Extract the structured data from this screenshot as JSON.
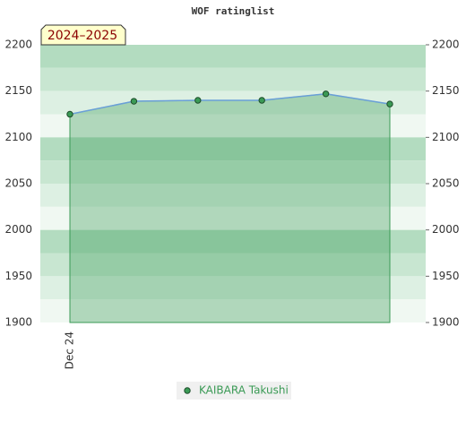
{
  "chart_data": {
    "type": "area",
    "title": "WOF ratinglist",
    "badge": "2024–2025",
    "categories": [
      "Dec 24",
      null,
      null,
      null,
      null,
      null
    ],
    "series": [
      {
        "name": "KAIBARA Takushi",
        "color": "#3a9a55",
        "values": [
          2125,
          2139,
          2140,
          2140,
          2147,
          2136
        ]
      }
    ],
    "ylim": [
      1900,
      2200
    ],
    "yticks": [
      1900,
      1950,
      2000,
      2050,
      2100,
      2150,
      2200
    ]
  }
}
